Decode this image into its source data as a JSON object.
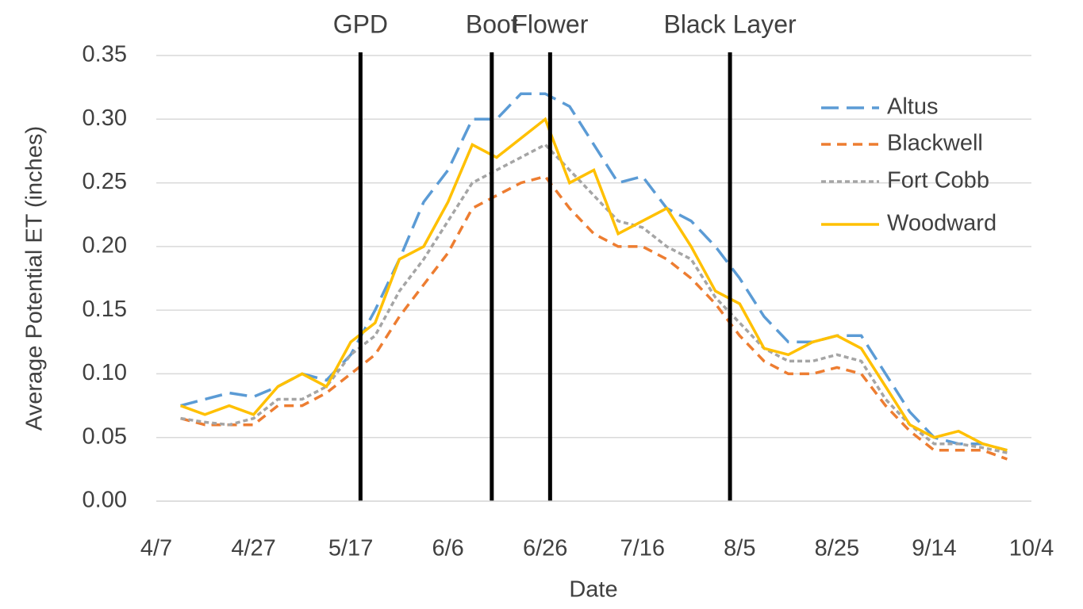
{
  "chart_data": {
    "type": "line",
    "x_label": "Date",
    "y_label": "Average Potential ET (inches)",
    "x": [
      "4/12",
      "4/17",
      "4/22",
      "4/27",
      "5/2",
      "5/7",
      "5/12",
      "5/17",
      "5/22",
      "5/27",
      "6/1",
      "6/6",
      "6/11",
      "6/16",
      "6/21",
      "6/26",
      "7/1",
      "7/6",
      "7/11",
      "7/16",
      "7/21",
      "7/26",
      "7/31",
      "8/5",
      "8/10",
      "8/15",
      "8/20",
      "8/25",
      "8/30",
      "9/4",
      "9/9",
      "9/14",
      "9/19",
      "9/24",
      "9/29"
    ],
    "series": [
      {
        "name": "Altus",
        "color": "#5b9bd5",
        "dash": "long",
        "values": [
          0.075,
          0.08,
          0.085,
          0.082,
          0.09,
          0.1,
          0.095,
          0.115,
          0.15,
          0.19,
          0.235,
          0.26,
          0.3,
          0.3,
          0.32,
          0.32,
          0.31,
          0.28,
          0.25,
          0.255,
          0.23,
          0.22,
          0.2,
          0.175,
          0.145,
          0.125,
          0.125,
          0.13,
          0.13,
          0.1,
          0.07,
          0.05,
          0.045,
          0.045,
          0.04
        ]
      },
      {
        "name": "Blackwell",
        "color": "#ed7d31",
        "dash": "medium",
        "values": [
          0.065,
          0.06,
          0.06,
          0.06,
          0.075,
          0.075,
          0.085,
          0.1,
          0.115,
          0.145,
          0.17,
          0.195,
          0.23,
          0.24,
          0.25,
          0.255,
          0.23,
          0.21,
          0.2,
          0.2,
          0.19,
          0.175,
          0.155,
          0.13,
          0.11,
          0.1,
          0.1,
          0.105,
          0.1,
          0.075,
          0.055,
          0.04,
          0.04,
          0.04,
          0.033
        ]
      },
      {
        "name": "Fort Cobb",
        "color": "#a5a5a5",
        "dash": "short",
        "values": [
          0.065,
          0.062,
          0.06,
          0.065,
          0.08,
          0.08,
          0.09,
          0.115,
          0.13,
          0.165,
          0.19,
          0.22,
          0.25,
          0.26,
          0.27,
          0.28,
          0.26,
          0.24,
          0.22,
          0.215,
          0.2,
          0.19,
          0.16,
          0.14,
          0.12,
          0.11,
          0.11,
          0.115,
          0.11,
          0.08,
          0.06,
          0.045,
          0.045,
          0.042,
          0.038
        ]
      },
      {
        "name": "Woodward",
        "color": "#ffc000",
        "dash": "solid",
        "values": [
          0.075,
          0.068,
          0.075,
          0.068,
          0.09,
          0.1,
          0.09,
          0.125,
          0.14,
          0.19,
          0.2,
          0.235,
          0.28,
          0.27,
          0.285,
          0.3,
          0.25,
          0.26,
          0.21,
          0.22,
          0.23,
          0.2,
          0.165,
          0.155,
          0.12,
          0.115,
          0.125,
          0.13,
          0.12,
          0.09,
          0.06,
          0.05,
          0.055,
          0.045,
          0.04
        ]
      }
    ],
    "phases": [
      {
        "label": "GPD",
        "x": "5/19"
      },
      {
        "label": "Boot",
        "x": "6/15"
      },
      {
        "label": "Flower",
        "x": "6/27"
      },
      {
        "label": "Black Layer",
        "x": "8/3"
      }
    ],
    "xlim": [
      "4/7",
      "10/4"
    ],
    "xticks": [
      "4/7",
      "4/27",
      "5/17",
      "6/6",
      "6/26",
      "7/16",
      "8/5",
      "8/25",
      "9/14",
      "10/4"
    ],
    "ylim": [
      0,
      0.35
    ],
    "yticks": [
      {
        "value": 0,
        "label": "0.00"
      },
      0.05,
      {
        "value": 0.1,
        "label": "0.10"
      },
      0.15,
      {
        "value": 0.2,
        "label": "0.20"
      },
      0.25,
      {
        "value": 0.3,
        "label": "0.30"
      },
      0.35
    ],
    "grid": true,
    "legend": "upper right"
  }
}
